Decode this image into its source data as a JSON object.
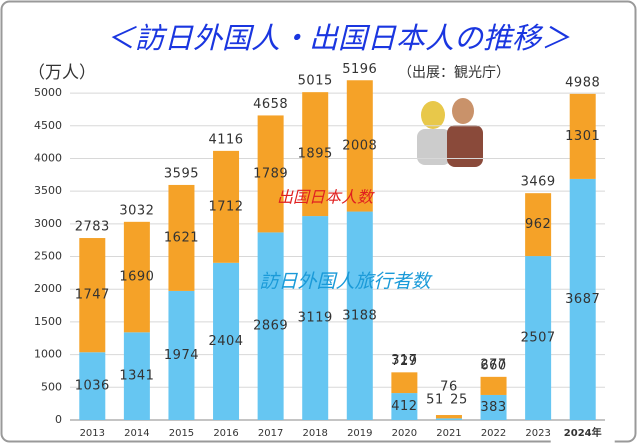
{
  "chart_data": {
    "type": "stacked_bar",
    "title": "＜訪日外国人・出国日本人の推移＞",
    "y_unit": "（万人）",
    "source": "（出展：観光庁）",
    "categories": [
      "2013",
      "2014",
      "2015",
      "2016",
      "2017",
      "2018",
      "2019",
      "2020",
      "2021",
      "2022",
      "2023",
      "2024年"
    ],
    "series": [
      {
        "name": "訪日外国人旅行者数",
        "color": "#66c6f2",
        "label_color": "#1a9ad8",
        "values": [
          1036,
          1341,
          1974,
          2404,
          2869,
          3119,
          3188,
          412,
          25,
          383,
          2507,
          3687
        ]
      },
      {
        "name": "出国日本人数",
        "color": "#f5a228",
        "label_color": "#e02020",
        "values": [
          1747,
          1690,
          1621,
          1712,
          1789,
          1895,
          2008,
          317,
          51,
          277,
          962,
          1301
        ]
      }
    ],
    "totals": [
      2783,
      3032,
      3595,
      4116,
      4658,
      5015,
      5196,
      729,
      76,
      660,
      3469,
      4988
    ],
    "ylim": [
      0,
      5200
    ],
    "yticks": [
      0,
      500,
      1000,
      1500,
      2000,
      2500,
      3000,
      3500,
      4000,
      4500,
      5000
    ],
    "grid": true
  }
}
